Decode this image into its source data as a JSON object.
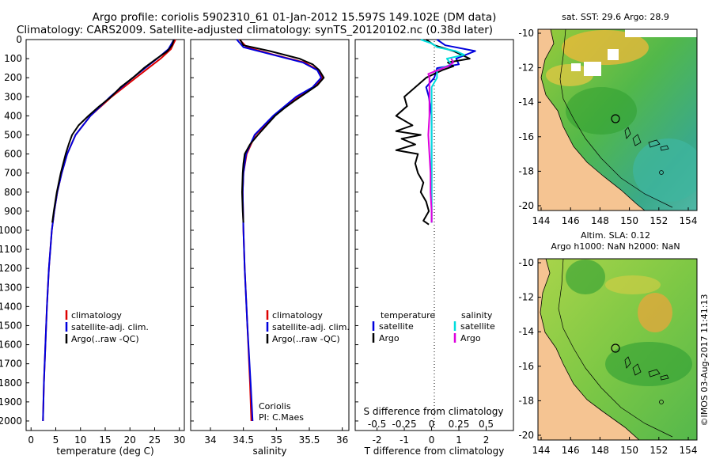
{
  "header": {
    "line1": "Argo profile: coriolis 5902310_61 01-Jan-2012 15.597S 149.102E (DM data)",
    "line2": "Climatology: CARS2009. Satellite-adjusted climatology: synTS_20120102.nc (0.38d later)"
  },
  "colors": {
    "climatology": "#dd0000",
    "satellite": "#0000dd",
    "argo": "#000000",
    "sal_satellite": "#00dddd",
    "sal_argo": "#dd00dd"
  },
  "depth_axis": {
    "ticks": [
      "0",
      "100",
      "200",
      "300",
      "400",
      "500",
      "600",
      "700",
      "800",
      "900",
      "1000",
      "1100",
      "1200",
      "1300",
      "1400",
      "1500",
      "1600",
      "1700",
      "1800",
      "1900",
      "2000"
    ]
  },
  "legend": {
    "climatology": "climatology",
    "satellite_adj": "satellite-adj. clim.",
    "argo": "Argo(..raw -QC)",
    "temperature": "temperature",
    "salinity": "salinity",
    "satellite": "satellite",
    "argo_short": "Argo"
  },
  "annotation": {
    "institution": "Coriolis",
    "pi": "PI: C.Maes"
  },
  "maps": {
    "top_title": "sat. SST: 29.6  Argo: 28.9",
    "bottom_title1": "Altim. SLA: 0.12",
    "bottom_title2": "Argo h1000: NaN h2000: NaN",
    "lat_ticks": [
      "-10",
      "-12",
      "-14",
      "-16",
      "-18",
      "-20"
    ],
    "lon_ticks": [
      "144",
      "146",
      "148",
      "150",
      "152",
      "154"
    ],
    "stamp": "©IMOS 03-Aug-2017 11:41:13"
  },
  "chart_data": [
    {
      "type": "line",
      "title": "",
      "xlabel": "temperature (deg C)",
      "ylabel": "",
      "xlim": [
        -1,
        31
      ],
      "ylim": [
        2050,
        0
      ],
      "xticks": [
        "0",
        "5",
        "10",
        "15",
        "20",
        "25",
        "30"
      ],
      "series": [
        {
          "name": "climatology",
          "depth": [
            0,
            50,
            100,
            200,
            300,
            400,
            500,
            600,
            700,
            800,
            900,
            1000,
            1200,
            1400,
            1600,
            1800,
            2000
          ],
          "values": [
            29.2,
            28.3,
            26.2,
            21.2,
            16.3,
            12.0,
            9.0,
            7.3,
            6.2,
            5.3,
            4.7,
            4.2,
            3.6,
            3.2,
            2.9,
            2.6,
            2.4
          ]
        },
        {
          "name": "satellite-adj. clim.",
          "depth": [
            0,
            50,
            100,
            200,
            300,
            400,
            500,
            600,
            700,
            800,
            900,
            1000,
            1200,
            1400,
            1600,
            1800,
            2000
          ],
          "values": [
            28.9,
            27.8,
            25.5,
            20.6,
            16.0,
            12.0,
            9.0,
            7.3,
            6.2,
            5.3,
            4.7,
            4.2,
            3.6,
            3.2,
            2.9,
            2.6,
            2.4
          ]
        },
        {
          "name": "Argo(..raw -QC)",
          "depth": [
            0,
            30,
            60,
            100,
            150,
            200,
            250,
            300,
            350,
            400,
            450,
            500,
            550,
            600,
            700,
            800,
            900,
            960
          ],
          "values": [
            28.9,
            28.5,
            27.6,
            25.4,
            22.8,
            20.6,
            18.1,
            16.2,
            13.8,
            11.6,
            9.6,
            8.3,
            7.6,
            7.0,
            6.0,
            5.2,
            4.6,
            4.3
          ]
        }
      ]
    },
    {
      "type": "line",
      "title": "",
      "xlabel": "salinity",
      "ylabel": "",
      "xlim": [
        33.7,
        36.1
      ],
      "ylim": [
        2050,
        0
      ],
      "xticks": [
        "34",
        "34.5",
        "35",
        "35.5",
        "36"
      ],
      "series": [
        {
          "name": "climatology",
          "depth": [
            0,
            40,
            80,
            120,
            160,
            200,
            250,
            300,
            400,
            500,
            600,
            700,
            800,
            1000,
            1200,
            1500,
            1800,
            2000
          ],
          "values": [
            34.44,
            34.55,
            34.97,
            35.43,
            35.63,
            35.7,
            35.57,
            35.33,
            34.97,
            34.68,
            34.55,
            34.5,
            34.49,
            34.5,
            34.52,
            34.56,
            34.6,
            34.62
          ]
        },
        {
          "name": "satellite-adj. clim.",
          "depth": [
            0,
            40,
            80,
            120,
            160,
            200,
            250,
            300,
            400,
            500,
            600,
            700,
            800,
            1000,
            1200,
            1500,
            1800,
            2000
          ],
          "values": [
            34.4,
            34.5,
            34.95,
            35.4,
            35.62,
            35.68,
            35.55,
            35.3,
            34.95,
            34.67,
            34.54,
            34.5,
            34.49,
            34.5,
            34.52,
            34.56,
            34.61,
            34.64
          ]
        },
        {
          "name": "Argo(..raw -QC)",
          "depth": [
            0,
            30,
            60,
            100,
            130,
            160,
            200,
            240,
            280,
            320,
            360,
            400,
            450,
            500,
            550,
            600,
            650,
            700,
            800,
            900,
            960
          ],
          "values": [
            34.45,
            34.5,
            34.9,
            35.35,
            35.55,
            35.65,
            35.72,
            35.62,
            35.45,
            35.28,
            35.12,
            34.98,
            34.85,
            34.72,
            34.6,
            34.52,
            34.5,
            34.49,
            34.48,
            34.49,
            34.5
          ]
        }
      ]
    },
    {
      "type": "line",
      "title": "",
      "xlabel": "T difference from climatology",
      "ylabel": "S difference from climatology",
      "xlim": [
        -2.8,
        3.0
      ],
      "ylim": [
        2050,
        0
      ],
      "xticks": [
        "-2",
        "-1",
        "0",
        "1",
        "2"
      ],
      "x2ticks": [
        "-0.5",
        "-0.25",
        "0",
        "0.25",
        "0.5"
      ],
      "series": [
        {
          "name": "temperature satellite",
          "depth": [
            0,
            30,
            60,
            100,
            130,
            150,
            200,
            250,
            300,
            400,
            500,
            600,
            700,
            800,
            900,
            960
          ],
          "values": [
            0.2,
            0.5,
            1.6,
            0.9,
            1.0,
            0.2,
            0.1,
            -0.2,
            -0.1,
            0.0,
            0.0,
            0.0,
            0.0,
            0.0,
            0.0,
            0.0
          ]
        },
        {
          "name": "temperature Argo",
          "depth": [
            0,
            30,
            60,
            100,
            120,
            140,
            160,
            200,
            250,
            300,
            350,
            400,
            450,
            480,
            500,
            520,
            550,
            580,
            600,
            650,
            700,
            750,
            800,
            850,
            900,
            950,
            970
          ],
          "values": [
            -0.2,
            0.1,
            0.8,
            1.4,
            0.6,
            0.8,
            0.4,
            -0.2,
            -0.6,
            -1.0,
            -0.9,
            -1.3,
            -0.7,
            -1.3,
            -0.4,
            -1.1,
            -0.6,
            -1.3,
            -0.5,
            -0.6,
            -0.5,
            -0.3,
            -0.4,
            -0.2,
            -0.1,
            -0.3,
            -0.1
          ]
        },
        {
          "name": "salinity satellite",
          "depth": [
            0,
            20,
            40,
            60,
            80,
            100,
            130,
            160,
            200,
            250,
            300,
            400,
            500,
            600,
            800,
            960
          ],
          "values": [
            -0.1,
            0.0,
            0.05,
            0.22,
            0.3,
            0.14,
            0.18,
            0.05,
            0.05,
            0.0,
            0.0,
            0.0,
            0.0,
            0.0,
            0.0,
            0.0
          ]
        },
        {
          "name": "salinity Argo",
          "depth": [
            100,
            120,
            140,
            180,
            200,
            400,
            500,
            600,
            700,
            800,
            900,
            960
          ],
          "values": [
            0.18,
            0.2,
            0.15,
            -0.03,
            -0.02,
            -0.02,
            -0.03,
            -0.02,
            -0.01,
            -0.01,
            0.0,
            0.0
          ]
        }
      ]
    }
  ]
}
